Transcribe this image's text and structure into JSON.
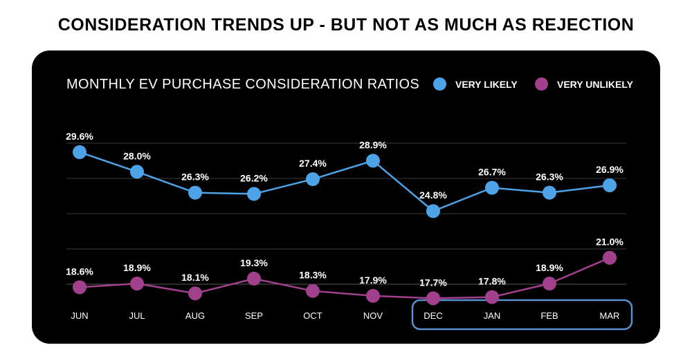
{
  "headline": "CONSIDERATION TRENDS UP - BUT NOT AS MUCH AS REJECTION",
  "colors": {
    "very_likely": "#4da3e8",
    "very_unlikely": "#a2408e",
    "highlight_box": "#5b8fd1",
    "background": "#000000"
  },
  "chart_data": {
    "type": "line",
    "title": "MONTHLY EV PURCHASE CONSIDERATION RATIOS",
    "categories": [
      "JUN",
      "JUL",
      "AUG",
      "SEP",
      "OCT",
      "NOV",
      "DEC",
      "JAN",
      "FEB",
      "MAR"
    ],
    "series": [
      {
        "name": "VERY LIKELY",
        "values": [
          29.6,
          28.0,
          26.3,
          26.2,
          27.4,
          28.9,
          24.8,
          26.7,
          26.3,
          26.9
        ],
        "labels": [
          "29.6%",
          "28.0%",
          "26.3%",
          "26.2%",
          "27.4%",
          "28.9%",
          "24.8%",
          "26.7%",
          "26.3%",
          "26.9%"
        ]
      },
      {
        "name": "VERY UNLIKELY",
        "values": [
          18.6,
          18.9,
          18.1,
          19.3,
          18.3,
          17.9,
          17.7,
          17.8,
          18.9,
          21.0
        ],
        "labels": [
          "18.6%",
          "18.9%",
          "18.1%",
          "19.3%",
          "18.3%",
          "17.9%",
          "17.7%",
          "17.8%",
          "18.9%",
          "21.0%"
        ]
      }
    ],
    "highlighted_categories": [
      "DEC",
      "JAN",
      "FEB",
      "MAR"
    ],
    "grid": true,
    "legend_position": "top-right"
  }
}
